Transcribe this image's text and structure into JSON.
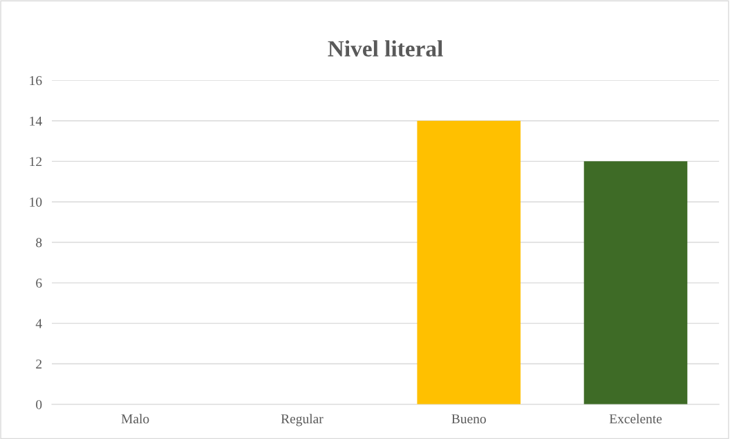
{
  "chart_data": {
    "type": "bar",
    "title": "Nivel literal",
    "categories": [
      "Malo",
      "Regular",
      "Bueno",
      "Excelente"
    ],
    "values": [
      0,
      0,
      14,
      12
    ],
    "colors": [
      "#ffc000",
      "#ffc000",
      "#ffc000",
      "#3e6b26"
    ],
    "ylim": [
      0,
      16
    ],
    "yticks": [
      0,
      2,
      4,
      6,
      8,
      10,
      12,
      14,
      16
    ],
    "grid": "y"
  }
}
